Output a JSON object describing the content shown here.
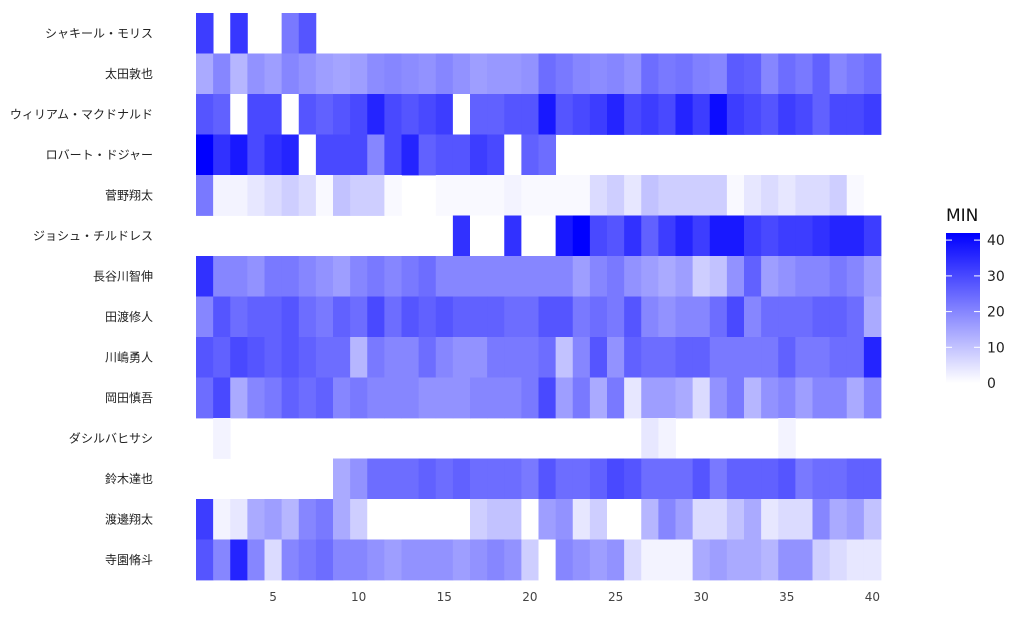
{
  "chart_data": {
    "type": "heatmap",
    "title": "",
    "xlabel": "",
    "ylabel": "",
    "rows": [
      "シャキール・モリス",
      "太田敦也",
      "ウィリアム・マクドナルド",
      "ロバート・ドジャー",
      "菅野翔太",
      "ジョシュ・チルドレス",
      "長谷川智伸",
      "田渡修人",
      "川嶋勇人",
      "岡田慎吾",
      "ダシルバヒサシ",
      "鈴木達也",
      "渡邊翔太",
      "寺園脩斗"
    ],
    "x": [
      1,
      2,
      3,
      4,
      5,
      6,
      7,
      8,
      9,
      10,
      11,
      12,
      13,
      14,
      15,
      16,
      17,
      18,
      19,
      20,
      21,
      22,
      23,
      24,
      25,
      26,
      27,
      28,
      29,
      30,
      31,
      32,
      33,
      34,
      35,
      36,
      37,
      38,
      39,
      40
    ],
    "x_ticks": [
      5,
      10,
      15,
      20,
      25,
      30,
      35,
      40
    ],
    "xlim": [
      1,
      40
    ],
    "legend": {
      "title": "MIN",
      "ticks": [
        0,
        10,
        20,
        30,
        40
      ],
      "position": "right",
      "low_color": "#ffffff",
      "high_color": "#0000ff"
    },
    "colorscale_range": [
      0,
      42
    ],
    "values": [
      [
        32,
        null,
        33,
        null,
        null,
        22,
        28,
        null,
        null,
        null,
        null,
        null,
        null,
        null,
        null,
        null,
        null,
        null,
        null,
        null,
        null,
        null,
        null,
        null,
        null,
        null,
        null,
        null,
        null,
        null,
        null,
        null,
        null,
        null,
        null,
        null,
        null,
        null,
        null,
        null
      ],
      [
        14,
        20,
        12,
        18,
        16,
        20,
        18,
        16,
        15,
        16,
        19,
        20,
        19,
        18,
        20,
        18,
        16,
        17,
        17,
        18,
        24,
        22,
        20,
        19,
        20,
        18,
        24,
        22,
        23,
        21,
        20,
        27,
        26,
        20,
        24,
        22,
        26,
        20,
        22,
        24
      ],
      [
        28,
        26,
        0,
        30,
        30,
        0,
        28,
        26,
        28,
        30,
        36,
        30,
        28,
        30,
        32,
        0,
        26,
        26,
        28,
        28,
        38,
        28,
        30,
        32,
        36,
        30,
        32,
        30,
        36,
        32,
        40,
        32,
        30,
        28,
        32,
        30,
        26,
        30,
        30,
        32
      ],
      [
        42,
        34,
        38,
        30,
        34,
        36,
        0,
        30,
        30,
        30,
        20,
        30,
        36,
        26,
        28,
        28,
        32,
        30,
        0,
        26,
        24,
        null,
        null,
        null,
        null,
        null,
        null,
        null,
        null,
        null,
        null,
        null,
        null,
        null,
        null,
        null,
        null,
        null,
        null,
        null
      ],
      [
        22,
        2,
        2,
        4,
        6,
        8,
        6,
        1,
        10,
        8,
        8,
        1,
        null,
        null,
        1,
        1,
        1,
        1,
        2,
        1,
        1,
        1,
        1,
        6,
        8,
        4,
        10,
        8,
        8,
        8,
        8,
        1,
        4,
        6,
        4,
        6,
        6,
        8,
        1,
        0
      ],
      [
        null,
        null,
        null,
        null,
        null,
        null,
        null,
        null,
        null,
        null,
        null,
        null,
        null,
        null,
        null,
        34,
        0,
        0,
        34,
        0,
        0,
        38,
        42,
        30,
        28,
        34,
        26,
        32,
        36,
        32,
        38,
        38,
        32,
        30,
        32,
        32,
        34,
        36,
        36,
        32
      ],
      [
        34,
        20,
        20,
        18,
        22,
        22,
        20,
        18,
        16,
        20,
        22,
        20,
        22,
        24,
        20,
        20,
        20,
        20,
        20,
        20,
        20,
        20,
        16,
        20,
        22,
        18,
        16,
        14,
        16,
        8,
        10,
        18,
        26,
        16,
        18,
        20,
        20,
        22,
        20,
        16
      ],
      [
        20,
        28,
        24,
        26,
        26,
        28,
        24,
        22,
        26,
        24,
        30,
        24,
        28,
        26,
        28,
        26,
        26,
        26,
        24,
        24,
        28,
        28,
        22,
        24,
        22,
        28,
        20,
        18,
        20,
        20,
        24,
        30,
        20,
        24,
        24,
        24,
        26,
        26,
        24,
        14
      ],
      [
        28,
        26,
        30,
        28,
        26,
        28,
        26,
        24,
        24,
        12,
        22,
        20,
        20,
        24,
        20,
        18,
        18,
        22,
        22,
        22,
        24,
        10,
        20,
        28,
        18,
        26,
        24,
        24,
        26,
        26,
        22,
        22,
        22,
        22,
        26,
        22,
        22,
        24,
        24,
        36
      ],
      [
        24,
        30,
        14,
        20,
        22,
        26,
        24,
        26,
        20,
        22,
        20,
        20,
        20,
        18,
        18,
        18,
        20,
        20,
        20,
        22,
        30,
        16,
        22,
        14,
        22,
        4,
        16,
        16,
        14,
        6,
        18,
        22,
        12,
        18,
        20,
        16,
        20,
        20,
        14,
        20
      ],
      [
        null,
        2,
        null,
        null,
        null,
        null,
        null,
        null,
        null,
        null,
        null,
        null,
        null,
        null,
        null,
        null,
        null,
        null,
        null,
        null,
        null,
        null,
        null,
        null,
        null,
        null,
        4,
        2,
        null,
        null,
        null,
        null,
        null,
        null,
        2,
        null,
        null,
        null,
        null,
        null
      ],
      [
        null,
        null,
        null,
        null,
        null,
        null,
        null,
        null,
        14,
        18,
        24,
        24,
        24,
        26,
        24,
        26,
        24,
        24,
        24,
        22,
        28,
        24,
        24,
        26,
        30,
        28,
        24,
        24,
        24,
        28,
        22,
        26,
        26,
        26,
        28,
        22,
        24,
        24,
        26,
        26
      ],
      [
        32,
        2,
        4,
        14,
        16,
        12,
        20,
        22,
        14,
        8,
        0,
        0,
        0,
        0,
        0,
        0,
        8,
        10,
        10,
        0,
        16,
        18,
        4,
        8,
        0,
        0,
        12,
        20,
        16,
        6,
        6,
        10,
        14,
        4,
        6,
        6,
        20,
        14,
        16,
        10
      ],
      [
        28,
        20,
        36,
        20,
        6,
        20,
        22,
        24,
        20,
        20,
        18,
        16,
        18,
        18,
        18,
        16,
        18,
        20,
        18,
        8,
        0,
        20,
        18,
        16,
        18,
        6,
        2,
        2,
        2,
        14,
        16,
        14,
        14,
        12,
        18,
        18,
        8,
        6,
        4,
        4
      ]
    ]
  }
}
